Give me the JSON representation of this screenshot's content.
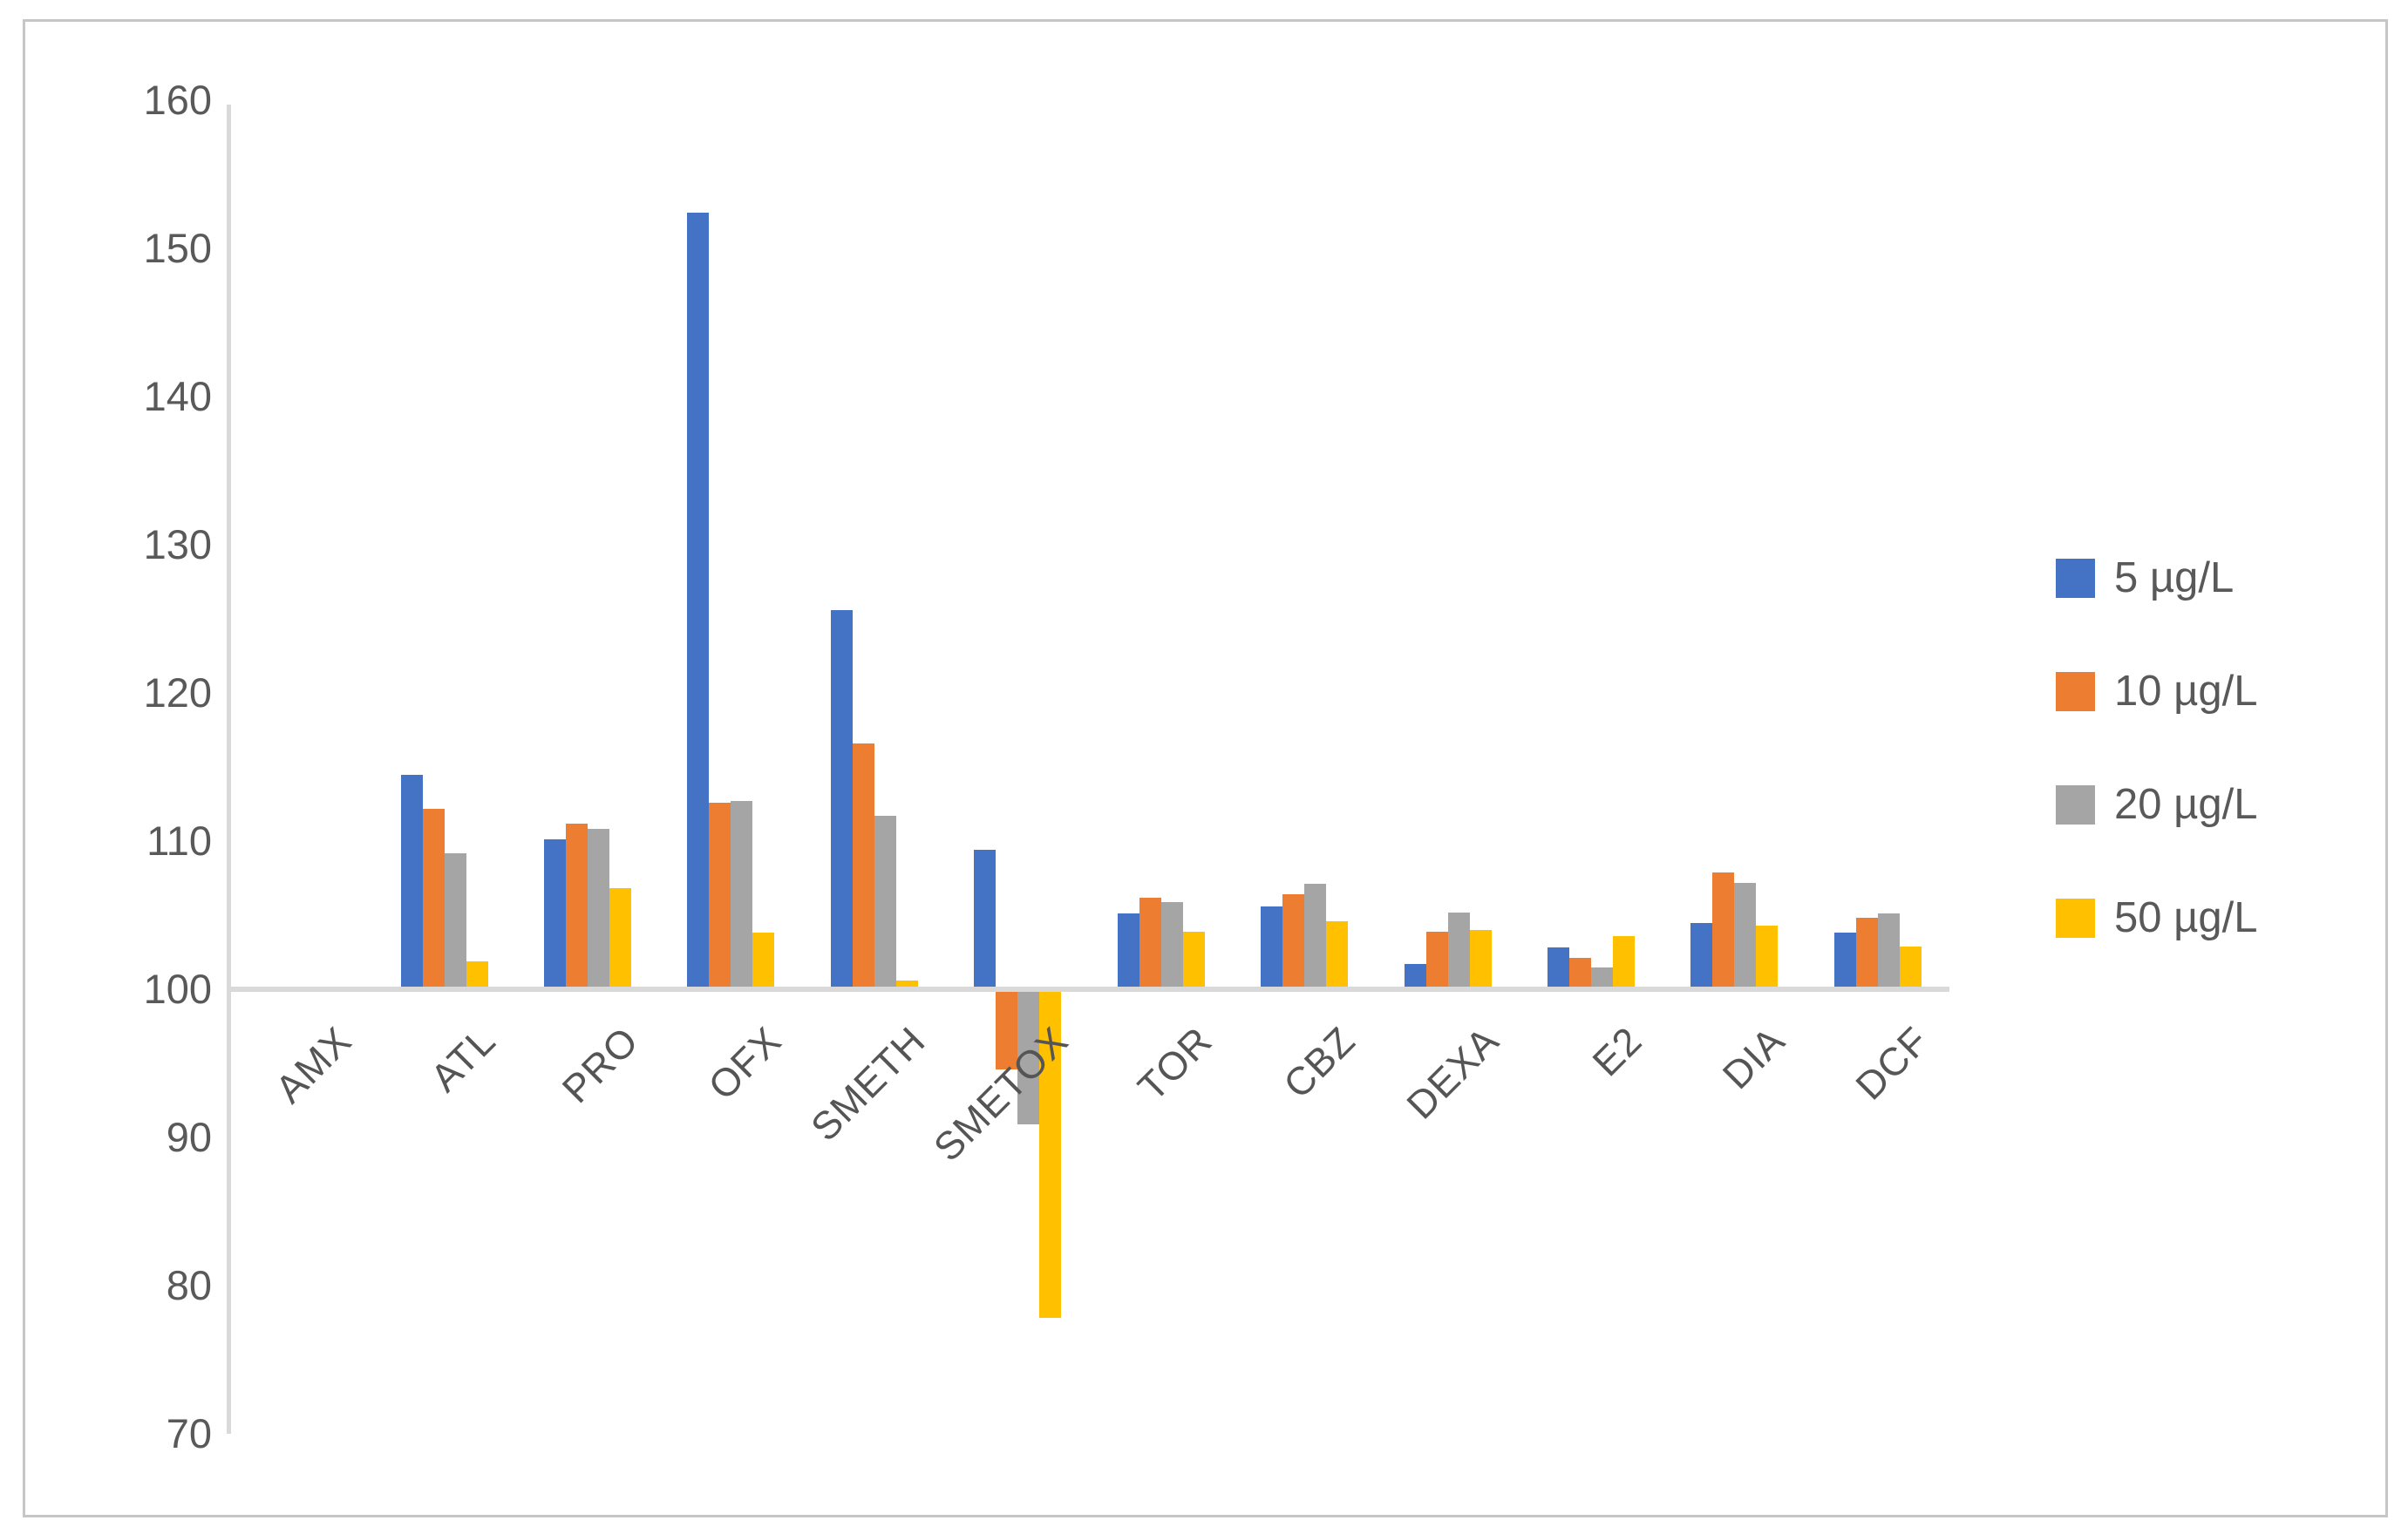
{
  "chart_data": {
    "type": "bar",
    "title": "",
    "xlabel": "",
    "ylabel": "",
    "categories": [
      "AMX",
      "ATL",
      "PRO",
      "OFX",
      "SMETH",
      "SMETOX",
      "TOR",
      "CBZ",
      "DEXA",
      "E2",
      "DIA",
      "DCF"
    ],
    "series": [
      {
        "name": "5 µg/L",
        "color": "#4472C4",
        "values": [
          100,
          114.5,
          110.1,
          152.4,
          125.6,
          109.4,
          105.1,
          105.6,
          101.7,
          102.8,
          104.5,
          103.8
        ]
      },
      {
        "name": "10 µg/L",
        "color": "#ED7D31",
        "values": [
          100,
          112.2,
          111.2,
          112.6,
          116.6,
          94.6,
          106.2,
          106.4,
          103.9,
          102.1,
          107.9,
          104.8
        ]
      },
      {
        "name": "20 µg/L",
        "color": "#A5A5A5",
        "values": [
          100,
          109.2,
          110.8,
          112.7,
          111.7,
          90.9,
          105.9,
          107.1,
          105.2,
          101.5,
          107.2,
          105.1
        ]
      },
      {
        "name": "50 µg/L",
        "color": "#FFC000",
        "values": [
          100,
          101.9,
          106.8,
          103.8,
          100.6,
          77.8,
          103.9,
          104.6,
          104.0,
          103.6,
          104.3,
          102.9
        ]
      }
    ],
    "baseline": 100,
    "ylim": [
      70,
      160
    ],
    "yticks": [
      70,
      80,
      90,
      100,
      110,
      120,
      130,
      140,
      150,
      160
    ],
    "grid": false,
    "legend_position": "right",
    "axis_color": "#d9d9d9",
    "text_color": "#595959"
  }
}
